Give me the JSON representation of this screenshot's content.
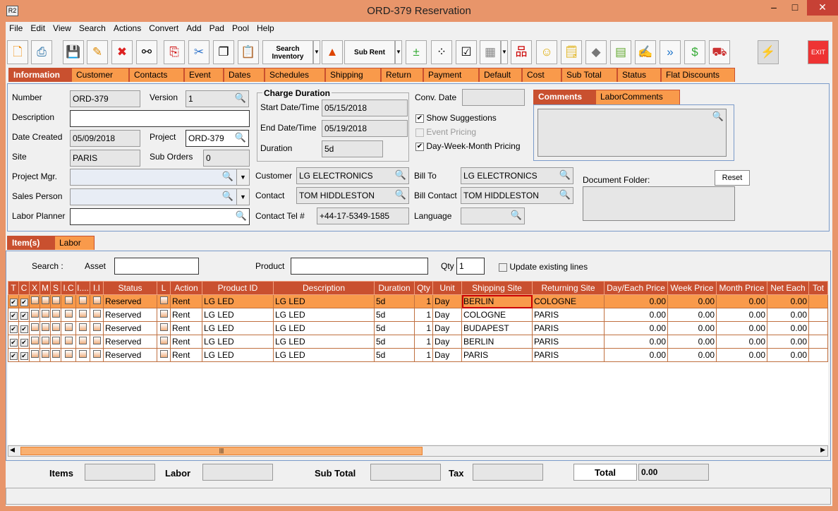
{
  "window": {
    "title": "ORD-379 Reservation",
    "icon": "R2",
    "minimize": "–",
    "maximize": "□",
    "close": "✕"
  },
  "menu": [
    "File",
    "Edit",
    "View",
    "Search",
    "Actions",
    "Convert",
    "Add",
    "Pad",
    "Pool",
    "Help"
  ],
  "toolbar": {
    "search_inventory": "Search Inventory",
    "sub_rent": "Sub Rent",
    "exit": "EXIT"
  },
  "main_tabs": [
    "Information",
    "Customer",
    "Contacts",
    "Event",
    "Dates",
    "Schedules",
    "Shipping",
    "Return",
    "Payment",
    "Default",
    "Cost",
    "Sub Total",
    "Status",
    "Flat Discounts"
  ],
  "info": {
    "number_label": "Number",
    "number": "ORD-379",
    "version_label": "Version",
    "version": "1",
    "description_label": "Description",
    "description": "",
    "date_created_label": "Date Created",
    "date_created": "05/09/2018",
    "project_label": "Project",
    "project": "ORD-379",
    "site_label": "Site",
    "site": "PARIS",
    "sub_orders_label": "Sub Orders",
    "sub_orders": "0",
    "project_mgr_label": "Project Mgr.",
    "project_mgr": "",
    "sales_person_label": "Sales Person",
    "sales_person": "",
    "labor_planner_label": "Labor Planner",
    "labor_planner": "",
    "charge_duration_title": "Charge Duration",
    "start_label": "Start Date/Time",
    "start": "05/15/2018",
    "end_label": "End Date/Time",
    "end": "05/19/2018",
    "duration_label": "Duration",
    "duration": "5d",
    "conv_date_label": "Conv. Date",
    "conv_date": "",
    "show_suggestions": "Show Suggestions",
    "event_pricing": "Event Pricing",
    "dwm_pricing": "Day-Week-Month Pricing",
    "customer_label": "Customer",
    "customer": "LG ELECTRONICS",
    "contact_label": "Contact",
    "contact": "TOM HIDDLESTON",
    "contact_tel_label": "Contact Tel #",
    "contact_tel": "+44-17-5349-1585",
    "bill_to_label": "Bill To",
    "bill_to": "LG ELECTRONICS",
    "bill_contact_label": "Bill Contact",
    "bill_contact": "TOM HIDDLESTON",
    "language_label": "Language",
    "language": "",
    "comment_tabs": [
      "Comments",
      "LaborComments"
    ],
    "document_folder_label": "Document Folder:",
    "reset": "Reset"
  },
  "item_tabs": [
    "Item(s)",
    "Labor"
  ],
  "search": {
    "label": "Search :",
    "asset_label": "Asset",
    "asset": "",
    "product_label": "Product",
    "product": "",
    "qty_label": "Qty",
    "qty": "1",
    "update_existing": "Update existing lines"
  },
  "table": {
    "columns": [
      "T",
      "C",
      "X",
      "M",
      "S",
      "I.C",
      "I....",
      "I.I",
      "Status",
      "L",
      "Action",
      "Product ID",
      "Description",
      "Duration",
      "Qty",
      "Unit",
      "Shipping Site",
      "Returning Site",
      "Day/Each Price",
      "Week Price",
      "Month Price",
      "Net Each",
      "Tot"
    ],
    "rows": [
      {
        "status": "Reserved",
        "action": "Rent",
        "product_id": "LG LED",
        "description": "LG LED",
        "duration": "5d",
        "qty": "1",
        "unit": "Day",
        "shipping": "BERLIN",
        "returning": "COLOGNE",
        "day": "0.00",
        "week": "0.00",
        "month": "0.00",
        "net": "0.00"
      },
      {
        "status": "Reserved",
        "action": "Rent",
        "product_id": "LG LED",
        "description": "LG LED",
        "duration": "5d",
        "qty": "1",
        "unit": "Day",
        "shipping": "COLOGNE",
        "returning": "PARIS",
        "day": "0.00",
        "week": "0.00",
        "month": "0.00",
        "net": "0.00"
      },
      {
        "status": "Reserved",
        "action": "Rent",
        "product_id": "LG LED",
        "description": "LG LED",
        "duration": "5d",
        "qty": "1",
        "unit": "Day",
        "shipping": "BUDAPEST",
        "returning": "PARIS",
        "day": "0.00",
        "week": "0.00",
        "month": "0.00",
        "net": "0.00"
      },
      {
        "status": "Reserved",
        "action": "Rent",
        "product_id": "LG LED",
        "description": "LG LED",
        "duration": "5d",
        "qty": "1",
        "unit": "Day",
        "shipping": "BERLIN",
        "returning": "PARIS",
        "day": "0.00",
        "week": "0.00",
        "month": "0.00",
        "net": "0.00"
      },
      {
        "status": "Reserved",
        "action": "Rent",
        "product_id": "LG LED",
        "description": "LG LED",
        "duration": "5d",
        "qty": "1",
        "unit": "Day",
        "shipping": "PARIS",
        "returning": "PARIS",
        "day": "0.00",
        "week": "0.00",
        "month": "0.00",
        "net": "0.00"
      }
    ]
  },
  "totals": {
    "items_label": "Items",
    "items": "",
    "labor_label": "Labor",
    "labor": "",
    "sub_total_label": "Sub Total",
    "sub_total": "",
    "tax_label": "Tax",
    "tax": "",
    "total_label": "Total",
    "total": "0.00"
  },
  "colors": {
    "accent": "#C9502F",
    "tab": "#F99A4B",
    "frame": "#E8956A"
  }
}
